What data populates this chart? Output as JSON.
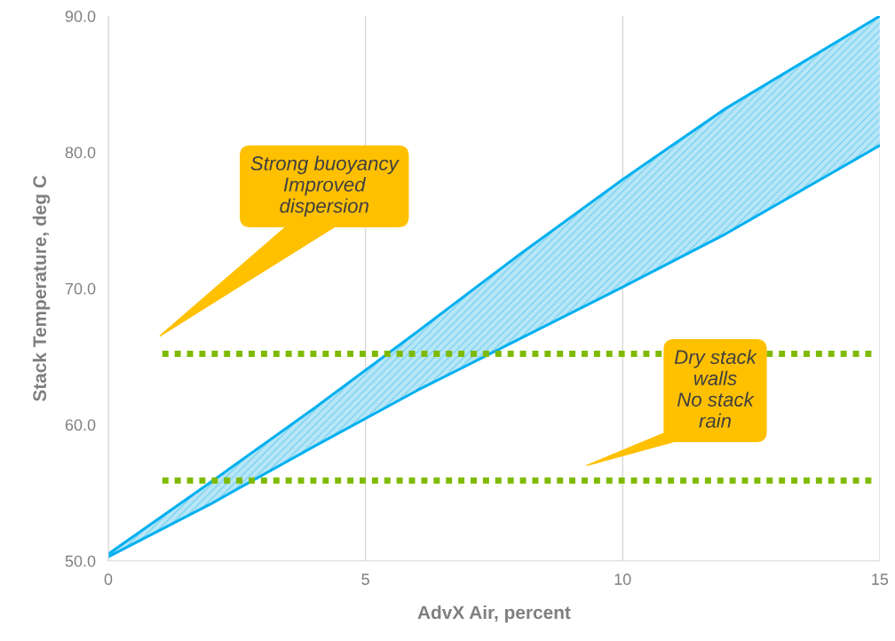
{
  "chart_data": {
    "type": "line",
    "xlabel": "AdvX Air, percent",
    "ylabel": "Stack Temperature, deg C",
    "x": [
      0,
      2,
      4,
      6,
      8,
      10,
      12,
      15
    ],
    "series": [
      {
        "color": "#00b0f0",
        "values": [
          50.5,
          55.8,
          61.2,
          66.8,
          72.5,
          78.0,
          83.2,
          90.0
        ],
        "lower": [
          50.3,
          54.2,
          58.4,
          62.5,
          66.3,
          70.1,
          74.0,
          80.5
        ],
        "upper": [
          50.5,
          55.8,
          61.2,
          66.8,
          72.5,
          78.0,
          83.2,
          90.0
        ]
      },
      {
        "color": "#00b0f0",
        "values": [
          50.3,
          54.2,
          58.4,
          62.5,
          66.3,
          70.1,
          74.0,
          80.5
        ]
      }
    ],
    "xlim": [
      0,
      15
    ],
    "xticks": [
      0,
      5,
      10,
      15
    ],
    "ylim": [
      50,
      90
    ],
    "yticks": [
      {
        "value": 50,
        "label": "50.0"
      },
      {
        "value": 60,
        "label": "60.0"
      },
      {
        "value": 70,
        "label": "70.0"
      },
      {
        "value": 80,
        "label": "80.0"
      },
      {
        "value": 90,
        "label": "90.0"
      }
    ],
    "ref_lines": [
      {
        "axis": "y",
        "value": 65.2,
        "color": "#7fba00",
        "line_style": "dotted"
      },
      {
        "axis": "y",
        "value": 55.9,
        "color": "#7fba00",
        "line_style": "dotted"
      }
    ],
    "annotations": [
      "Strong buoyancy\nImproved\ndispersion",
      "Dry stack\nwalls\nNo stack\nrain"
    ],
    "grid": "x",
    "legend": false,
    "marker": "none",
    "line_style": "solid"
  }
}
